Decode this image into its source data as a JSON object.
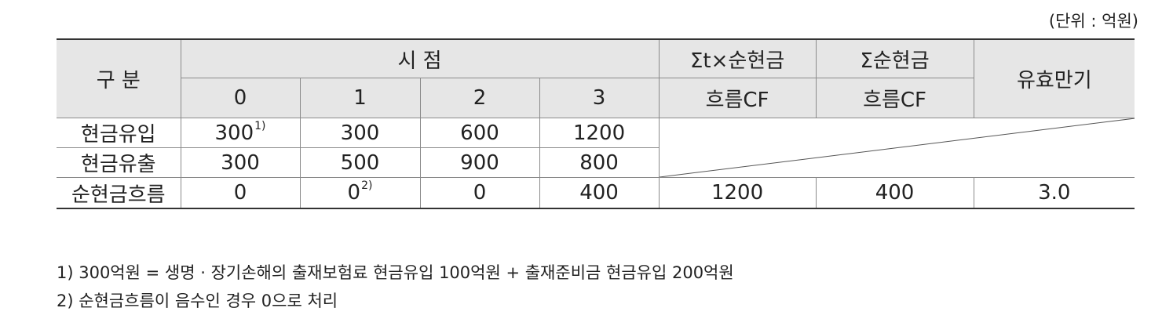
{
  "unit_note": "(단위 : 억원)",
  "header": {
    "category": "구 분",
    "time_point": "시 점",
    "periods": [
      "0",
      "1",
      "2",
      "3"
    ],
    "weighted_cf_line1": "Σt×순현금",
    "weighted_cf_line2": "흐름CF",
    "sum_cf_line1": "Σ순현금",
    "sum_cf_line2": "흐름CF",
    "duration": "유효만기"
  },
  "rows": [
    {
      "label": "현금유입",
      "values": [
        "300",
        "300",
        "600",
        "1200"
      ],
      "sup": [
        "1)",
        "",
        "",
        ""
      ]
    },
    {
      "label": "현금유출",
      "values": [
        "300",
        "500",
        "900",
        "800"
      ],
      "sup": [
        "",
        "",
        "",
        ""
      ]
    },
    {
      "label": "순현금흐름",
      "values": [
        "0",
        "0",
        "0",
        "400"
      ],
      "sup": [
        "",
        "2)",
        "",
        ""
      ],
      "weighted_cf": "1200",
      "sum_cf": "400",
      "duration": "3.0"
    }
  ],
  "footnotes": [
    "1) 300억원 = 생명 · 장기손해의 출재보험료 현금유입 100억원 + 출재준비금 현금유입 200억원",
    "2) 순현금흐름이 음수인 경우 0으로 처리"
  ]
}
